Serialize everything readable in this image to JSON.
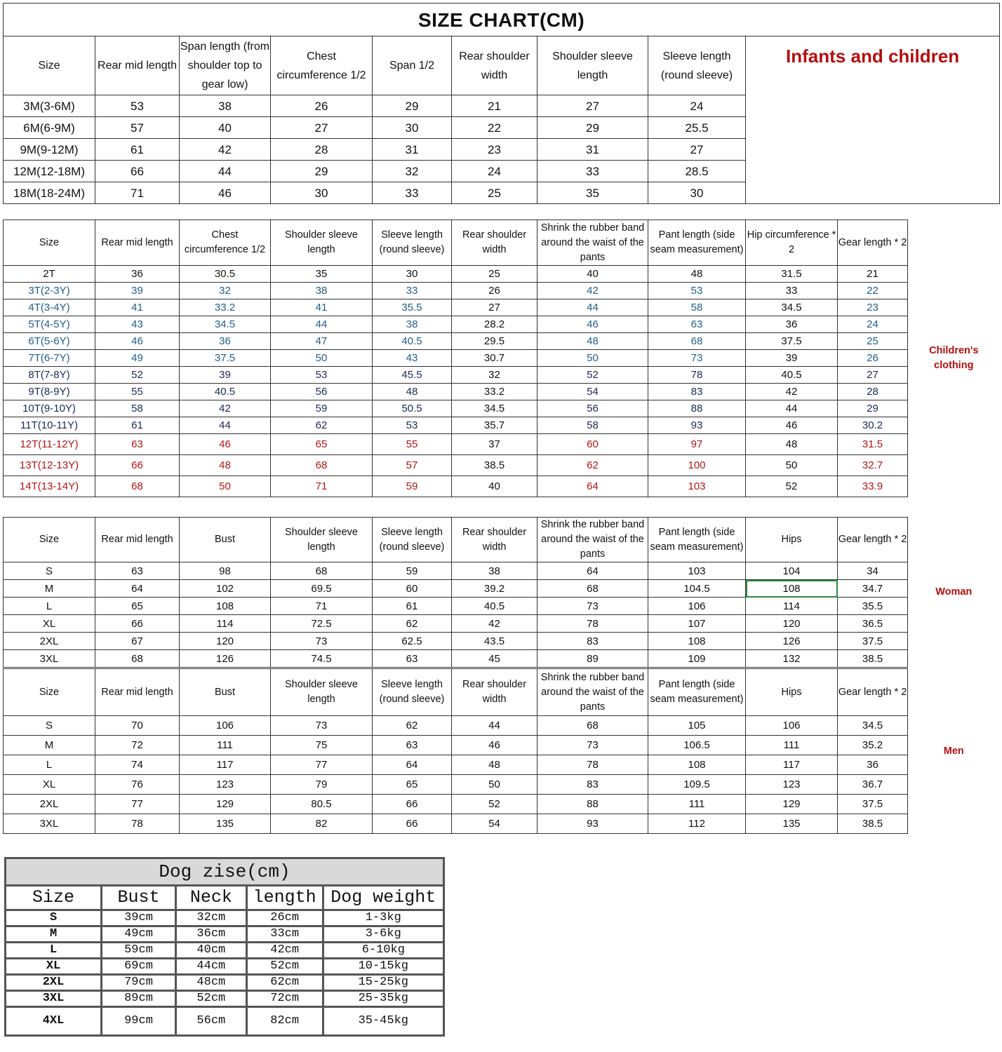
{
  "infant": {
    "title": "SIZE CHART(CM)",
    "label": "Infants and children",
    "headers": [
      "Size",
      "Rear mid length",
      "Span length (from shoulder top to gear low)",
      "Chest circumference 1/2",
      "Span 1/2",
      "Rear shoulder width",
      "Shoulder sleeve length",
      "Sleeve length (round sleeve)"
    ],
    "rows": [
      [
        "3M(3-6M)",
        "53",
        "38",
        "26",
        "29",
        "21",
        "27",
        "24"
      ],
      [
        "6M(6-9M)",
        "57",
        "40",
        "27",
        "30",
        "22",
        "29",
        "25.5"
      ],
      [
        "9M(9-12M)",
        "61",
        "42",
        "28",
        "31",
        "23",
        "31",
        "27"
      ],
      [
        "12M(12-18M)",
        "66",
        "44",
        "29",
        "32",
        "24",
        "33",
        "28.5"
      ],
      [
        "18M(18-24M)",
        "71",
        "46",
        "30",
        "33",
        "25",
        "35",
        "30"
      ]
    ]
  },
  "children": {
    "label": "Children's clothing",
    "headers": [
      "Size",
      "Rear mid length",
      "Chest circumference 1/2",
      "Shoulder sleeve length",
      "Sleeve length (round sleeve)",
      "Rear shoulder width",
      "Shrink the rubber band around the waist of the pants",
      "Pant length (side seam measurement)",
      "Hip circumference * 2",
      "Gear length * 2"
    ],
    "black_columns": [
      5,
      8
    ],
    "rows": [
      {
        "tone": "black",
        "cells": [
          "2T",
          "36",
          "30.5",
          "35",
          "30",
          "25",
          "40",
          "48",
          "31.5",
          "21"
        ]
      },
      {
        "tone": "blue",
        "cells": [
          "3T(2-3Y)",
          "39",
          "32",
          "38",
          "33",
          "26",
          "42",
          "53",
          "33",
          "22"
        ]
      },
      {
        "tone": "blue",
        "cells": [
          "4T(3-4Y)",
          "41",
          "33.2",
          "41",
          "35.5",
          "27",
          "44",
          "58",
          "34.5",
          "23"
        ]
      },
      {
        "tone": "blue",
        "cells": [
          "5T(4-5Y)",
          "43",
          "34.5",
          "44",
          "38",
          "28.2",
          "46",
          "63",
          "36",
          "24"
        ]
      },
      {
        "tone": "blue",
        "cells": [
          "6T(5-6Y)",
          "46",
          "36",
          "47",
          "40.5",
          "29.5",
          "48",
          "68",
          "37.5",
          "25"
        ]
      },
      {
        "tone": "blue",
        "cells": [
          "7T(6-7Y)",
          "49",
          "37.5",
          "50",
          "43",
          "30.7",
          "50",
          "73",
          "39",
          "26"
        ]
      },
      {
        "tone": "navy",
        "cells": [
          "8T(7-8Y)",
          "52",
          "39",
          "53",
          "45.5",
          "32",
          "52",
          "78",
          "40.5",
          "27"
        ]
      },
      {
        "tone": "navy",
        "cells": [
          "9T(8-9Y)",
          "55",
          "40.5",
          "56",
          "48",
          "33.2",
          "54",
          "83",
          "42",
          "28"
        ]
      },
      {
        "tone": "navy",
        "cells": [
          "10T(9-10Y)",
          "58",
          "42",
          "59",
          "50.5",
          "34.5",
          "56",
          "88",
          "44",
          "29"
        ]
      },
      {
        "tone": "navy",
        "cells": [
          "11T(10-11Y)",
          "61",
          "44",
          "62",
          "53",
          "35.7",
          "58",
          "93",
          "46",
          "30.2"
        ]
      },
      {
        "tone": "red",
        "cells": [
          "12T(11-12Y)",
          "63",
          "46",
          "65",
          "55",
          "37",
          "60",
          "97",
          "48",
          "31.5"
        ]
      },
      {
        "tone": "red",
        "cells": [
          "13T(12-13Y)",
          "66",
          "48",
          "68",
          "57",
          "38.5",
          "62",
          "100",
          "50",
          "32.7"
        ]
      },
      {
        "tone": "red",
        "cells": [
          "14T(13-14Y)",
          "68",
          "50",
          "71",
          "59",
          "40",
          "64",
          "103",
          "52",
          "33.9"
        ]
      }
    ]
  },
  "woman": {
    "label": "Woman",
    "headers": [
      "Size",
      "Rear mid length",
      "Bust",
      "Shoulder sleeve length",
      "Sleeve length (round sleeve)",
      "Rear shoulder width",
      "Shrink the rubber band around the waist of the pants",
      "Pant length (side seam measurement)",
      "Hips",
      "Gear length * 2"
    ],
    "rows": [
      [
        "S",
        "63",
        "98",
        "68",
        "59",
        "38",
        "64",
        "103",
        "104",
        "34"
      ],
      [
        "M",
        "64",
        "102",
        "69.5",
        "60",
        "39.2",
        "68",
        "104.5",
        "108",
        "34.7"
      ],
      [
        "L",
        "65",
        "108",
        "71",
        "61",
        "40.5",
        "73",
        "106",
        "114",
        "35.5"
      ],
      [
        "XL",
        "66",
        "114",
        "72.5",
        "62",
        "42",
        "78",
        "107",
        "120",
        "36.5"
      ],
      [
        "2XL",
        "67",
        "120",
        "73",
        "62.5",
        "43.5",
        "83",
        "108",
        "126",
        "37.5"
      ],
      [
        "3XL",
        "68",
        "126",
        "74.5",
        "63",
        "45",
        "89",
        "109",
        "132",
        "38.5"
      ]
    ]
  },
  "men": {
    "label": "Men",
    "headers": [
      "Size",
      "Rear mid length",
      "Bust",
      "Shoulder sleeve length",
      "Sleeve length (round sleeve)",
      "Rear shoulder width",
      "Shrink the rubber band around the waist of the pants",
      "Pant length (side seam measurement)",
      "Hips",
      "Gear length * 2"
    ],
    "rows": [
      [
        "S",
        "70",
        "106",
        "73",
        "62",
        "44",
        "68",
        "105",
        "106",
        "34.5"
      ],
      [
        "M",
        "72",
        "111",
        "75",
        "63",
        "46",
        "73",
        "106.5",
        "111",
        "35.2"
      ],
      [
        "L",
        "74",
        "117",
        "77",
        "64",
        "48",
        "78",
        "108",
        "117",
        "36"
      ],
      [
        "XL",
        "76",
        "123",
        "79",
        "65",
        "50",
        "83",
        "109.5",
        "123",
        "36.7"
      ],
      [
        "2XL",
        "77",
        "129",
        "80.5",
        "66",
        "52",
        "88",
        "111",
        "129",
        "37.5"
      ],
      [
        "3XL",
        "78",
        "135",
        "82",
        "66",
        "54",
        "93",
        "112",
        "135",
        "38.5"
      ]
    ]
  },
  "dog": {
    "title": "Dog zise(cm)",
    "headers": [
      "Size",
      "Bust",
      "Neck",
      "length",
      "Dog weight"
    ],
    "rows": [
      [
        "S",
        "39cm",
        "32cm",
        "26cm",
        "1-3kg"
      ],
      [
        "M",
        "49cm",
        "36cm",
        "33cm",
        "3-6kg"
      ],
      [
        "L",
        "59cm",
        "40cm",
        "42cm",
        "6-10kg"
      ],
      [
        "XL",
        "69cm",
        "44cm",
        "52cm",
        "10-15kg"
      ],
      [
        "2XL",
        "79cm",
        "48cm",
        "62cm",
        "15-25kg"
      ],
      [
        "3XL",
        "89cm",
        "52cm",
        "72cm",
        "25-35kg"
      ],
      [
        "4XL",
        "99cm",
        "56cm",
        "82cm",
        "35-45kg"
      ]
    ]
  },
  "colors": {
    "label_red": "#b40f0f",
    "blue": "#1f5e8c",
    "navy": "#1b2a55",
    "red": "#b41414",
    "selected_cell": "#2e8b3e"
  }
}
